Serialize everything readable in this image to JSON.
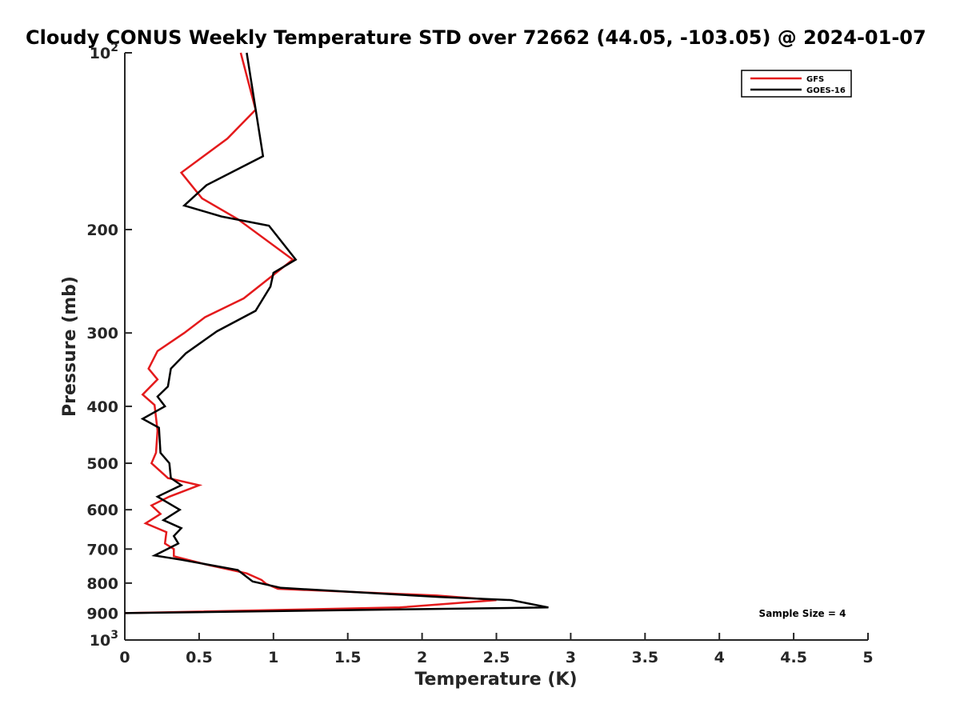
{
  "chart_data": {
    "type": "line",
    "title": "Cloudy CONUS Weekly Temperature STD over 72662 (44.05, -103.05) @ 2024-01-07",
    "xlabel": "Temperature (K)",
    "ylabel": "Pressure (mb)",
    "xlim": [
      0,
      5
    ],
    "ylim": [
      100,
      1000
    ],
    "y_scale": "log",
    "y_reversed": true,
    "grid": false,
    "legend_position": "top-right",
    "x_ticks": [
      0,
      0.5,
      1,
      1.5,
      2,
      2.5,
      3,
      3.5,
      4,
      4.5,
      5
    ],
    "x_tick_labels": [
      "0",
      "0.5",
      "1",
      "1.5",
      "2",
      "2.5",
      "3",
      "3.5",
      "4",
      "4.5",
      "5"
    ],
    "y_ticks": [
      100,
      200,
      300,
      400,
      500,
      600,
      700,
      800,
      900,
      1000
    ],
    "y_tick_labels": [
      "10^2",
      "200",
      "300",
      "400",
      "500",
      "600",
      "700",
      "800",
      "900",
      "10^3"
    ],
    "annotation": "Sample Size = 4",
    "series": [
      {
        "name": "GFS",
        "color": "#e41a1c",
        "points": [
          [
            0.78,
            100
          ],
          [
            0.88,
            125
          ],
          [
            0.69,
            140
          ],
          [
            0.38,
            160
          ],
          [
            0.52,
            177
          ],
          [
            0.76,
            192
          ],
          [
            1.13,
            225
          ],
          [
            0.8,
            262
          ],
          [
            0.54,
            282
          ],
          [
            0.4,
            300
          ],
          [
            0.22,
            322
          ],
          [
            0.16,
            345
          ],
          [
            0.22,
            360
          ],
          [
            0.12,
            382
          ],
          [
            0.2,
            398
          ],
          [
            0.22,
            440
          ],
          [
            0.21,
            480
          ],
          [
            0.18,
            500
          ],
          [
            0.29,
            530
          ],
          [
            0.5,
            545
          ],
          [
            0.3,
            570
          ],
          [
            0.18,
            590
          ],
          [
            0.24,
            610
          ],
          [
            0.14,
            633
          ],
          [
            0.28,
            655
          ],
          [
            0.27,
            685
          ],
          [
            0.33,
            700
          ],
          [
            0.33,
            720
          ],
          [
            0.56,
            745
          ],
          [
            0.82,
            770
          ],
          [
            0.92,
            790
          ],
          [
            0.95,
            802
          ],
          [
            1.03,
            818
          ],
          [
            2.1,
            840
          ],
          [
            2.5,
            855
          ],
          [
            1.85,
            880
          ],
          [
            0.0,
            900
          ]
        ]
      },
      {
        "name": "GOES-16",
        "color": "#000000",
        "points": [
          [
            0.82,
            100
          ],
          [
            0.93,
            150
          ],
          [
            0.55,
            168
          ],
          [
            0.4,
            182
          ],
          [
            0.65,
            190
          ],
          [
            0.97,
            197
          ],
          [
            1.15,
            225
          ],
          [
            1.0,
            237
          ],
          [
            0.98,
            250
          ],
          [
            0.88,
            275
          ],
          [
            0.62,
            298
          ],
          [
            0.41,
            325
          ],
          [
            0.31,
            345
          ],
          [
            0.29,
            370
          ],
          [
            0.22,
            385
          ],
          [
            0.27,
            400
          ],
          [
            0.12,
            420
          ],
          [
            0.23,
            435
          ],
          [
            0.24,
            480
          ],
          [
            0.3,
            500
          ],
          [
            0.31,
            530
          ],
          [
            0.38,
            545
          ],
          [
            0.22,
            570
          ],
          [
            0.37,
            600
          ],
          [
            0.26,
            625
          ],
          [
            0.38,
            645
          ],
          [
            0.33,
            665
          ],
          [
            0.36,
            685
          ],
          [
            0.2,
            718
          ],
          [
            0.38,
            730
          ],
          [
            0.76,
            760
          ],
          [
            0.86,
            795
          ],
          [
            1.05,
            815
          ],
          [
            2.12,
            845
          ],
          [
            2.6,
            855
          ],
          [
            2.85,
            880
          ],
          [
            0.0,
            900
          ]
        ]
      }
    ]
  }
}
